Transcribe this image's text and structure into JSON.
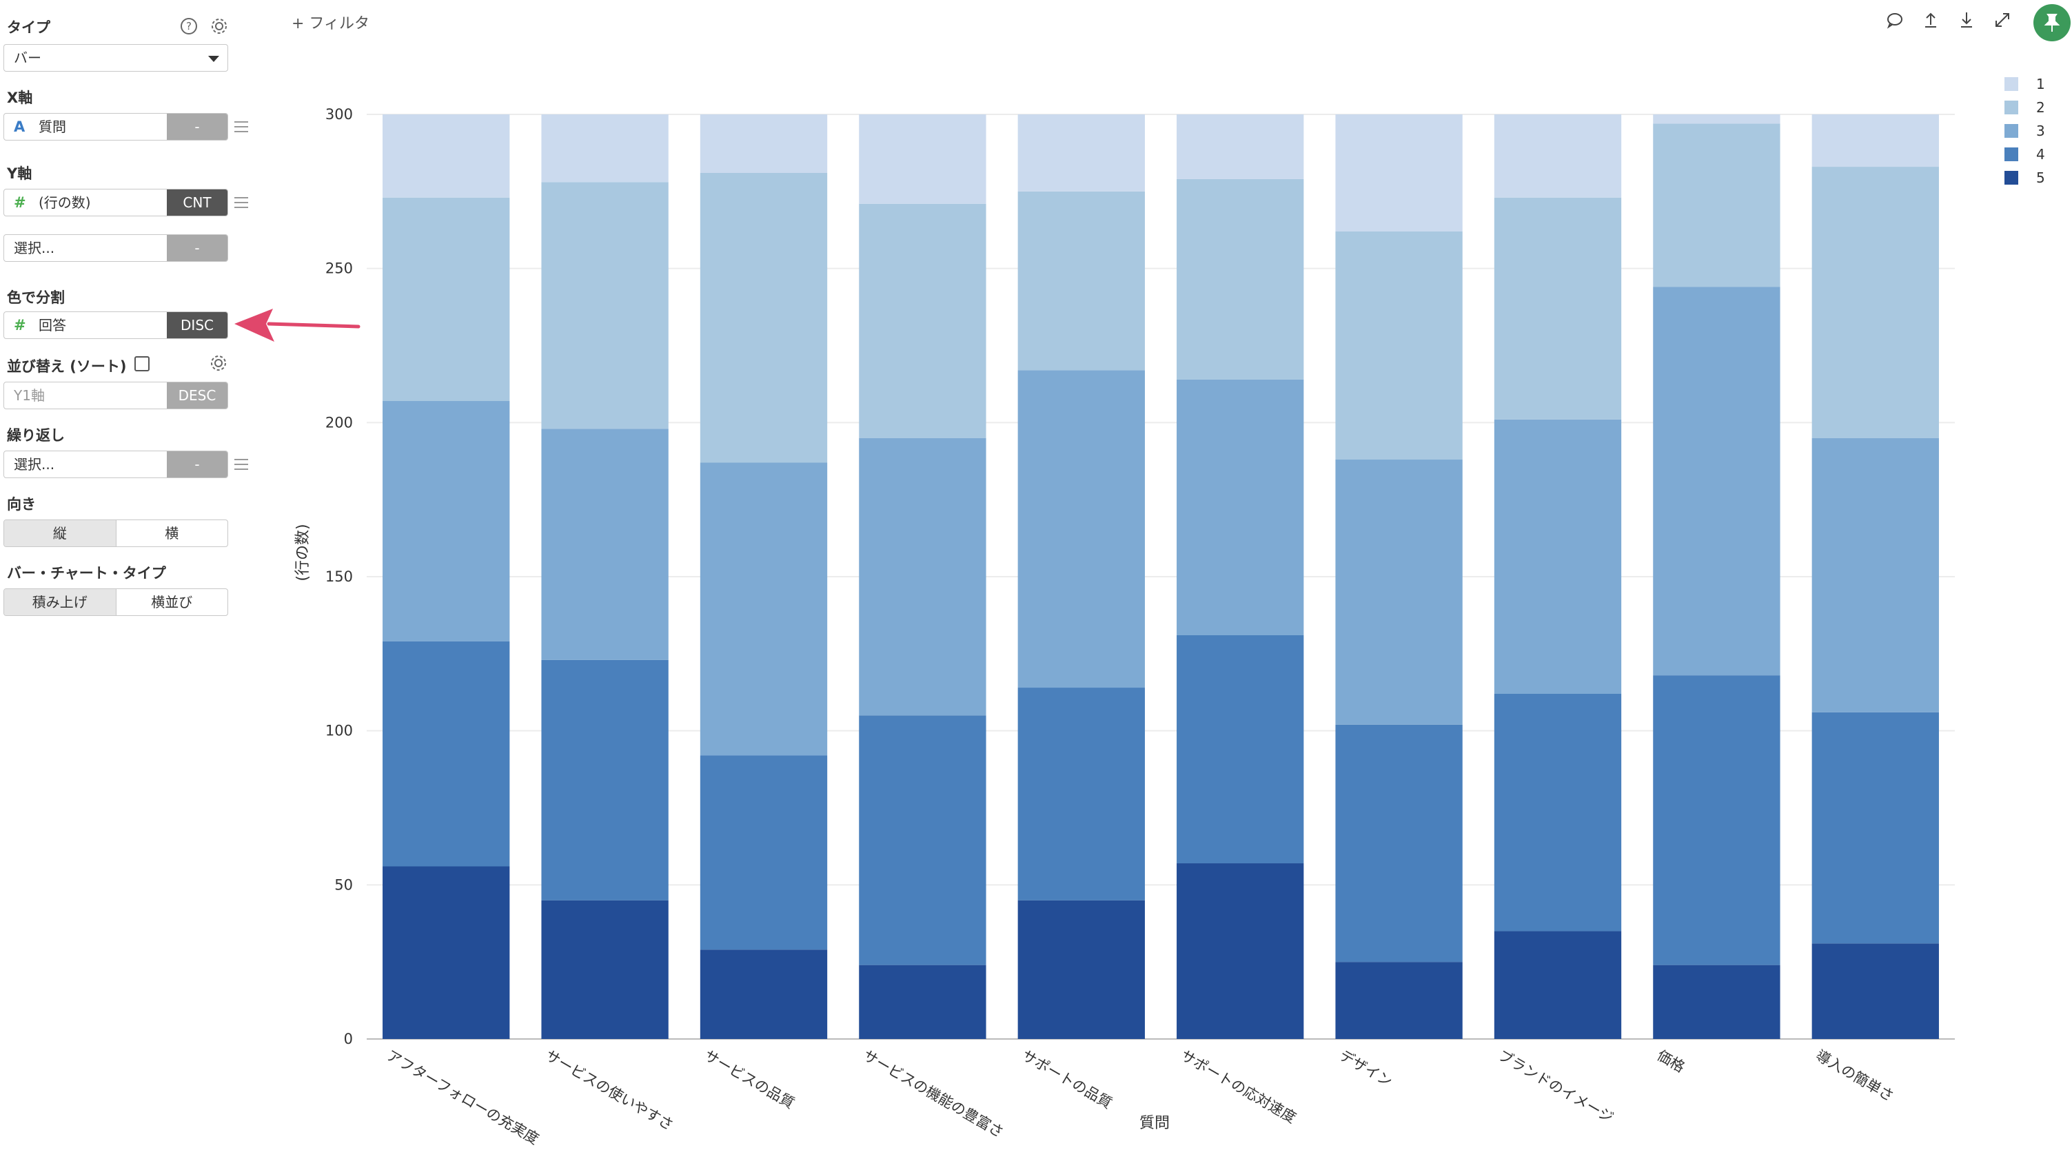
{
  "panel": {
    "type": {
      "title": "タイプ",
      "value": "バー"
    },
    "x_axis": {
      "title": "X軸",
      "field_icon": "A",
      "field": "質問",
      "badge": "-"
    },
    "y_axis": {
      "title": "Y軸",
      "field_icon": "#",
      "field": "(行の数)",
      "badge": "CNT",
      "second_placeholder": "選択...",
      "second_badge": "-"
    },
    "color_split": {
      "title": "色で分割",
      "field_icon": "#",
      "field": "回答",
      "badge": "DISC"
    },
    "sort": {
      "title": "並び替え (ソート)",
      "placeholder": "Y1軸",
      "badge": "DESC"
    },
    "repeat": {
      "title": "繰り返し",
      "placeholder": "選択...",
      "badge": "-"
    },
    "orientation": {
      "title": "向き",
      "options": [
        "縦",
        "横"
      ],
      "selected": "縦"
    },
    "bar_type": {
      "title": "バー・チャート・タイプ",
      "options": [
        "積み上げ",
        "横並び"
      ],
      "selected": "積み上げ"
    }
  },
  "topbar": {
    "filter_label": "+ フィルタ",
    "icons": [
      "comment-icon",
      "upload-icon",
      "download-icon",
      "expand-icon",
      "pin-icon"
    ]
  },
  "colors": {
    "accent_green": "#3c9a5a",
    "arrow": "#e0476b"
  },
  "chart_data": {
    "type": "bar",
    "stacked": true,
    "xlabel": "質問",
    "ylabel": "(行の数)",
    "ylim": [
      0,
      300
    ],
    "yticks": [
      0,
      50,
      100,
      150,
      200,
      250,
      300
    ],
    "grid": true,
    "legend_position": "top-right",
    "categories": [
      "アフターフォローの充実度",
      "サービスの使いやすさ",
      "サービスの品質",
      "サービスの機能の豊富さ",
      "サポートの品質",
      "サポートの応対速度",
      "デザイン",
      "ブランドのイメージ",
      "価格",
      "導入の簡単さ"
    ],
    "series": [
      {
        "name": "5",
        "color": "#234d96",
        "values": [
          56,
          45,
          29,
          24,
          45,
          57,
          25,
          35,
          24,
          31
        ]
      },
      {
        "name": "4",
        "color": "#4a80bc",
        "values": [
          73,
          78,
          63,
          81,
          69,
          74,
          77,
          77,
          94,
          75
        ]
      },
      {
        "name": "3",
        "color": "#7eaad3",
        "values": [
          78,
          75,
          95,
          90,
          103,
          83,
          86,
          89,
          126,
          89
        ]
      },
      {
        "name": "2",
        "color": "#a9c8e0",
        "values": [
          66,
          80,
          94,
          76,
          58,
          65,
          74,
          72,
          53,
          88
        ]
      },
      {
        "name": "1",
        "color": "#cbdaee",
        "values": [
          27,
          22,
          19,
          29,
          25,
          21,
          38,
          27,
          3,
          17
        ]
      }
    ]
  }
}
